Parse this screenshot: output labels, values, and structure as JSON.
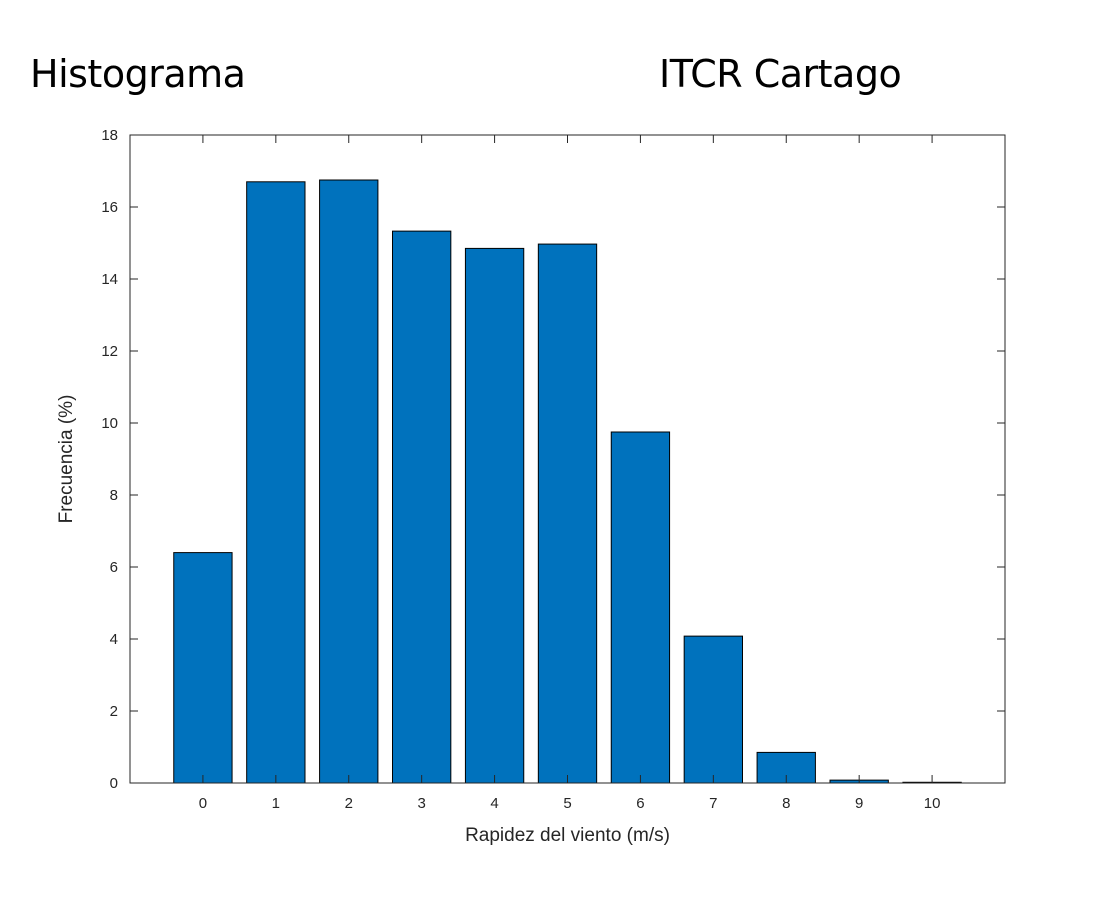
{
  "header": {
    "left_title": "Histograma",
    "right_title": "ITCR Cartago"
  },
  "chart_data": {
    "type": "bar",
    "categories": [
      "0",
      "1",
      "2",
      "3",
      "4",
      "5",
      "6",
      "7",
      "8",
      "9",
      "10"
    ],
    "values": [
      6.4,
      16.7,
      16.75,
      15.33,
      14.85,
      14.97,
      9.75,
      4.08,
      0.85,
      0.08,
      0.02
    ],
    "xlabel": "Rapidez del viento (m/s)",
    "ylabel": "Frecuencia (%)",
    "ylim": [
      0,
      18
    ],
    "xlim": [
      -1,
      11
    ],
    "yticks": [
      0,
      2,
      4,
      6,
      8,
      10,
      12,
      14,
      16,
      18
    ],
    "bar_color": "#0072BD",
    "edge_color": "#000000",
    "grid": false
  }
}
